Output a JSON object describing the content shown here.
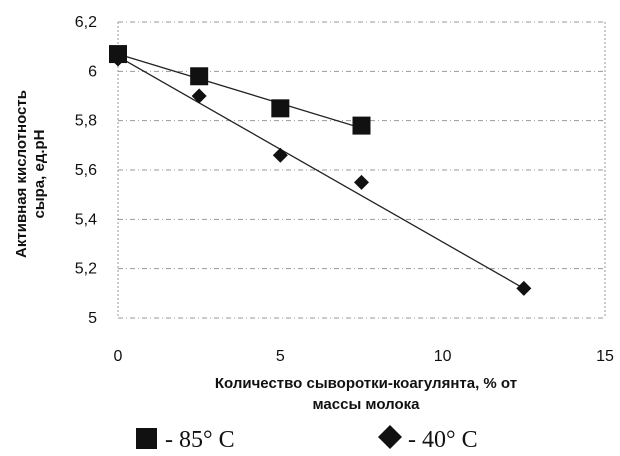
{
  "chart_data": {
    "type": "scatter",
    "xlabel": [
      "Количество сыворотки-коагулянта, % от",
      "массы молока"
    ],
    "ylabel": [
      "Активная кислотность",
      "сыра, ед.pH"
    ],
    "xlim": [
      0,
      15
    ],
    "ylim": [
      5,
      6.2
    ],
    "x_ticks": [
      "0",
      "5",
      "10",
      "15"
    ],
    "x_tick_values": [
      0,
      5,
      10,
      15
    ],
    "y_ticks": [
      "5",
      "5,2",
      "5,4",
      "5,6",
      "5,8",
      "6",
      "6,2"
    ],
    "y_tick_values": [
      5,
      5.2,
      5.4,
      5.6,
      5.8,
      6,
      6.2
    ],
    "grid": true,
    "series": [
      {
        "name": "- 85° C",
        "marker": "square",
        "color": "#111111",
        "points": [
          [
            0,
            6.07
          ],
          [
            2.5,
            5.98
          ],
          [
            5,
            5.85
          ],
          [
            7.5,
            5.78
          ]
        ],
        "trendline": [
          [
            0,
            6.07
          ],
          [
            7.5,
            5.77
          ]
        ]
      },
      {
        "name": "- 40° C",
        "marker": "diamond",
        "color": "#111111",
        "points": [
          [
            0,
            6.05
          ],
          [
            2.5,
            5.9
          ],
          [
            5,
            5.66
          ],
          [
            7.5,
            5.55
          ],
          [
            12.5,
            5.12
          ]
        ],
        "trendline": [
          [
            0,
            6.06
          ],
          [
            12.5,
            5.12
          ]
        ]
      }
    ],
    "legend_position": "bottom"
  }
}
